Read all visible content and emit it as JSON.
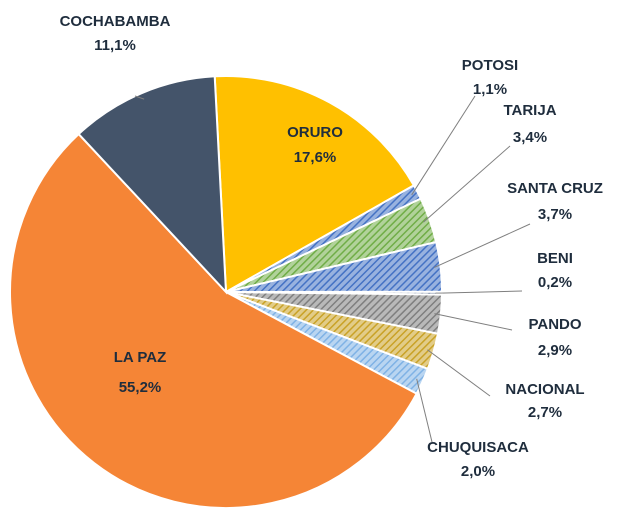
{
  "chart_data": {
    "type": "pie",
    "categories": [
      "ORURO",
      "POTOSI",
      "TARIJA",
      "SANTA CRUZ",
      "BENI",
      "PANDO",
      "NACIONAL",
      "CHUQUISACA",
      "LA PAZ",
      "COCHABAMBA"
    ],
    "values": [
      17.6,
      1.1,
      3.4,
      3.7,
      0.2,
      2.9,
      2.7,
      2.0,
      55.2,
      11.1
    ],
    "value_labels": [
      "17,6%",
      "1,1%",
      "3,4%",
      "3,7%",
      "0,2%",
      "2,9%",
      "2,7%",
      "2,0%",
      "55,2%",
      "11,1%"
    ],
    "colors": [
      "#ffc000",
      "#4472c4",
      "#70ad47",
      "#4472c4",
      "#1f3864",
      "#7f7f7f",
      "#c9a227",
      "#7fb2e5",
      "#f58536",
      "#44546a"
    ],
    "hatched": [
      false,
      true,
      true,
      true,
      true,
      true,
      true,
      true,
      false,
      false
    ]
  }
}
